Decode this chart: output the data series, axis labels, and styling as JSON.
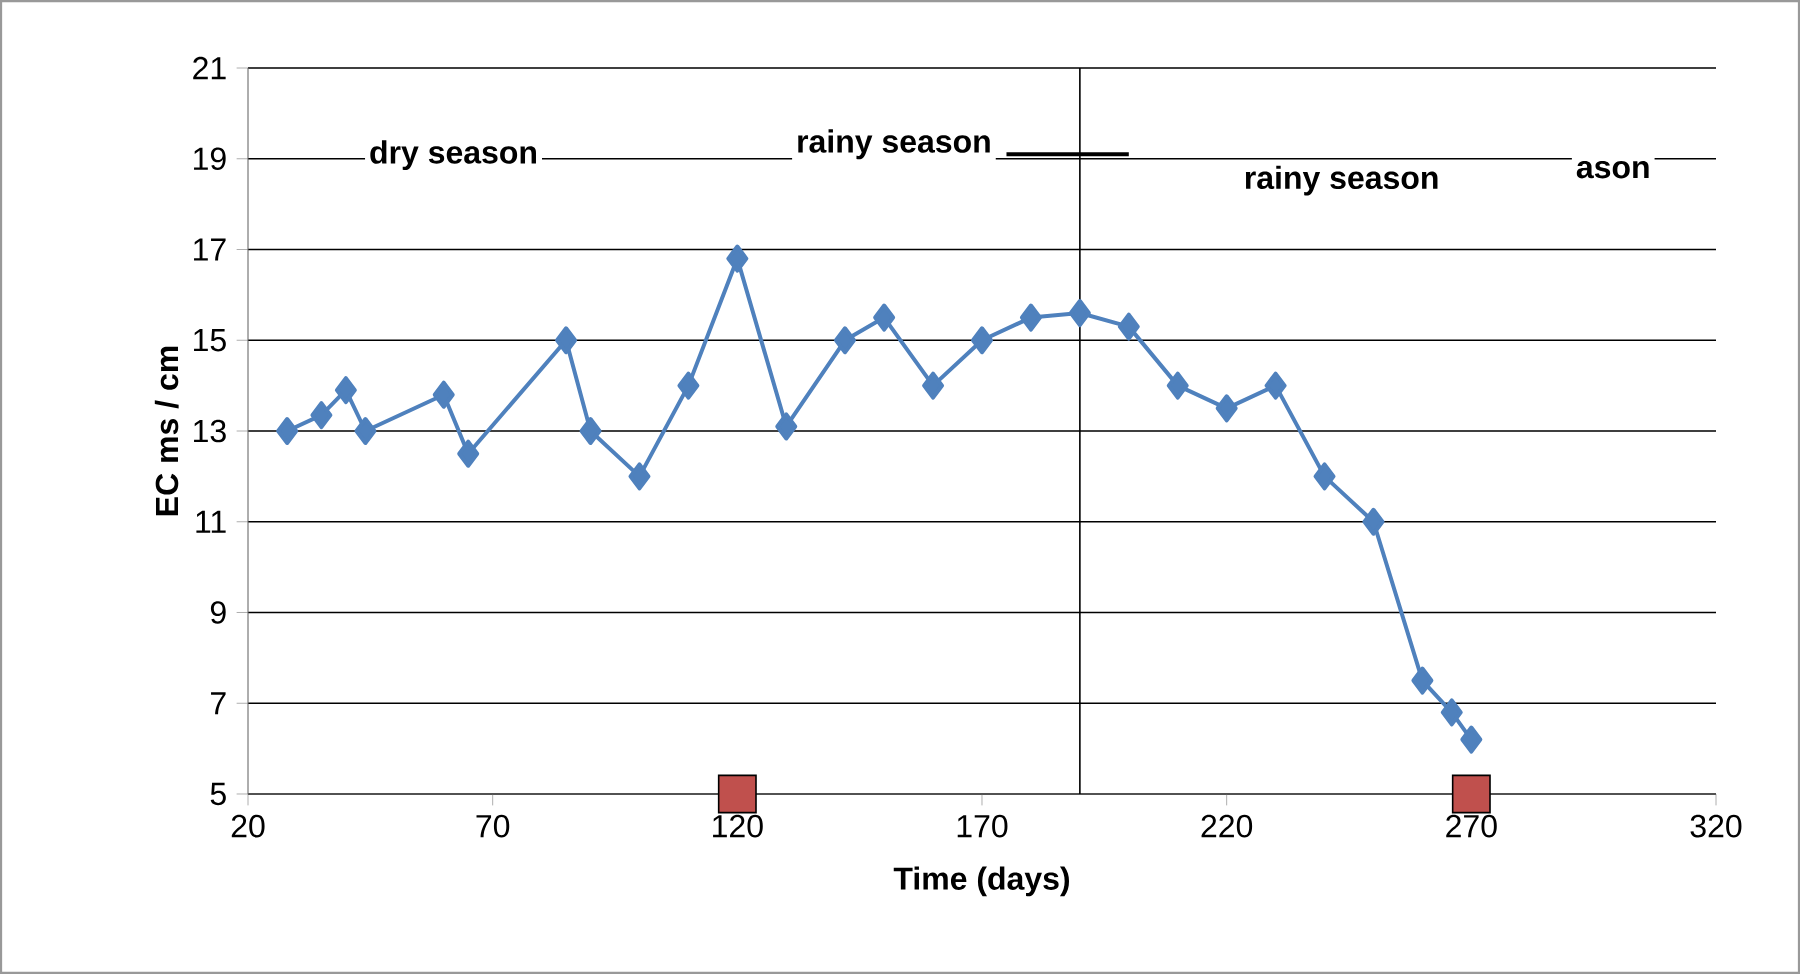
{
  "chart_data": {
    "type": "line",
    "xlabel": "Time (days)",
    "ylabel": "EC ms / cm",
    "xlim": [
      20,
      320
    ],
    "ylim": [
      5,
      21
    ],
    "xticks": [
      20,
      70,
      120,
      170,
      220,
      270,
      320
    ],
    "yticks": [
      5,
      7,
      9,
      11,
      13,
      15,
      17,
      19,
      21
    ],
    "grid": "y",
    "series": [
      {
        "color": "#4f81bd",
        "marker": "diamond",
        "x": [
          28,
          35,
          40,
          44,
          60,
          65,
          85,
          90,
          100,
          110,
          120,
          130,
          142,
          150,
          160,
          170,
          180,
          190,
          200,
          210,
          220,
          230,
          240,
          250,
          260,
          266,
          270
        ],
        "values": [
          13,
          13.35,
          13.9,
          13,
          13.8,
          12.5,
          15,
          13,
          12,
          14,
          16.8,
          13.1,
          15,
          15.5,
          14,
          15,
          15.5,
          15.6,
          15.3,
          14,
          13.5,
          14,
          12,
          11,
          7.5,
          6.8,
          6.2
        ]
      },
      {
        "type": "scatter",
        "color": "#c0504d",
        "marker": "square",
        "x": [
          120,
          270
        ],
        "values": [
          5,
          5
        ]
      },
      {
        "type": "line",
        "color": "#000000",
        "marker": "none",
        "x": [
          175,
          200
        ],
        "values": [
          19.1,
          19.1
        ]
      }
    ],
    "ref_lines": [
      {
        "axis": "x",
        "value": 190,
        "color": "#000000"
      }
    ],
    "annotations": [
      "dry season",
      "rainy  season",
      "rainy season",
      "ason"
    ]
  }
}
